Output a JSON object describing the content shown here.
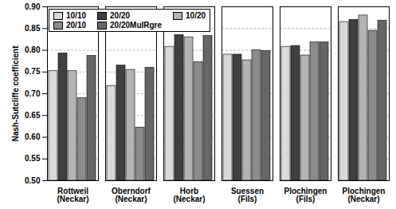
{
  "chart_data": {
    "type": "bar",
    "ylabel": "Nash-Sutcliffe coefficient",
    "categories": [
      "Rottweil\n(Neckar)",
      "Oberndorf\n(Neckar)",
      "Horb\n(Neckar)",
      "Suessen\n(Fils)",
      "Plochingen\n(Fils)",
      "Plochingen\n(Neckar)"
    ],
    "series": [
      {
        "name": "10/10",
        "color": "#d9d9d9",
        "values": [
          0.752,
          0.718,
          0.808,
          0.79,
          0.808,
          0.865
        ]
      },
      {
        "name": "20/20",
        "color": "#404040",
        "values": [
          0.793,
          0.765,
          0.835,
          0.79,
          0.81,
          0.87
        ]
      },
      {
        "name": "10/20",
        "color": "#b3b3b3",
        "values": [
          0.752,
          0.755,
          0.83,
          0.777,
          0.788,
          0.88
        ]
      },
      {
        "name": "20/10",
        "color": "#8c8c8c",
        "values": [
          0.69,
          0.622,
          0.773,
          0.8,
          0.818,
          0.845
        ]
      },
      {
        "name": "20/20MulRgre",
        "color": "#666666",
        "values": [
          0.787,
          0.76,
          0.833,
          0.798,
          0.818,
          0.868
        ]
      }
    ],
    "ylim": [
      0.5,
      0.9
    ],
    "yticks": [
      {
        "value": 0.5,
        "label": "0.50"
      },
      {
        "value": 0.55,
        "label": "0.55"
      },
      {
        "value": 0.6,
        "label": "0.60"
      },
      {
        "value": 0.65,
        "label": "0.65"
      },
      {
        "value": 0.7,
        "label": "0.70"
      },
      {
        "value": 0.75,
        "label": "0.75"
      },
      {
        "value": 0.8,
        "label": "0.80"
      },
      {
        "value": 0.85,
        "label": "0.85"
      },
      {
        "value": 0.9,
        "label": "0.90"
      }
    ],
    "grid": true,
    "legend": "top-left"
  }
}
